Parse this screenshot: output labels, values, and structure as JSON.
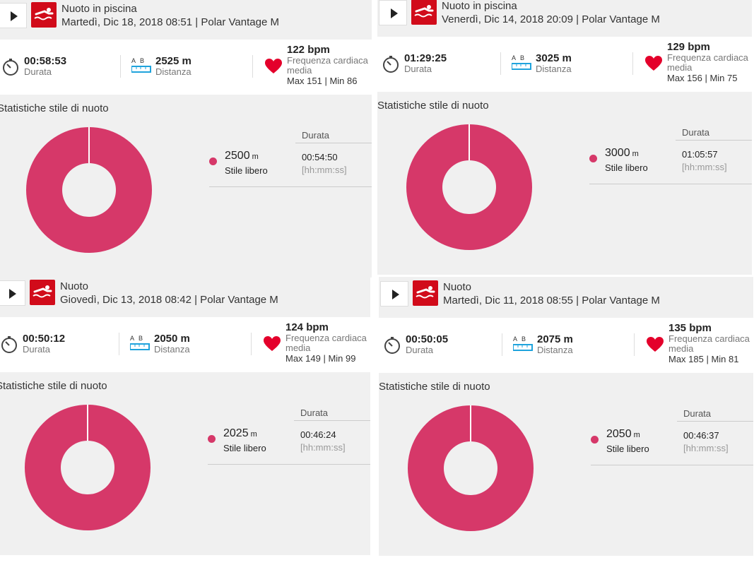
{
  "colors": {
    "accent": "#d63869",
    "sport_icon": "#d10b1a"
  },
  "sessions": [
    {
      "title": "Nuoto in piscina",
      "subtitle": "Martedì, Dic 18, 2018 08:51 | Polar Vantage M",
      "duration": "00:58:53",
      "duration_label": "Durata",
      "distance": "2525 m",
      "distance_label": "Distanza",
      "ab_a": "A",
      "ab_b": "B",
      "hr_value": "122 bpm",
      "hr_label1": "Frequenza cardiaca",
      "hr_label2": "media",
      "hr_minmax": "Max 151  |  Min 86",
      "stats_title": "Statistiche stile di nuoto",
      "style_distance": "2500",
      "unit": "m",
      "style_label": "Stile libero",
      "dur_header": "Durata",
      "style_duration": "00:54:50",
      "dur_unit": "[hh:mm:ss]",
      "style_share": 1.0
    },
    {
      "title": "Nuoto in piscina",
      "subtitle": "Venerdì, Dic 14, 2018 20:09 | Polar Vantage M",
      "duration": "01:29:25",
      "duration_label": "Durata",
      "distance": "3025 m",
      "distance_label": "Distanza",
      "ab_a": "A",
      "ab_b": "B",
      "hr_value": "129 bpm",
      "hr_label1": "Frequenza cardiaca",
      "hr_label2": "media",
      "hr_minmax": "Max 156  |  Min 75",
      "stats_title": "Statistiche stile di nuoto",
      "style_distance": "3000",
      "unit": "m",
      "style_label": "Stile libero",
      "dur_header": "Durata",
      "style_duration": "01:05:57",
      "dur_unit": "[hh:mm:ss]",
      "style_share": 1.0
    },
    {
      "title": "Nuoto",
      "subtitle": "Giovedì, Dic 13, 2018 08:42 | Polar Vantage M",
      "duration": "00:50:12",
      "duration_label": "Durata",
      "distance": "2050 m",
      "distance_label": "Distanza",
      "ab_a": "A",
      "ab_b": "B",
      "hr_value": "124 bpm",
      "hr_label1": "Frequenza cardiaca",
      "hr_label2": "media",
      "hr_minmax": "Max 149  |  Min 99",
      "stats_title": "Statistiche stile di nuoto",
      "style_distance": "2025",
      "unit": "m",
      "style_label": "Stile libero",
      "dur_header": "Durata",
      "style_duration": "00:46:24",
      "dur_unit": "[hh:mm:ss]",
      "style_share": 1.0
    },
    {
      "title": "Nuoto",
      "subtitle": "Martedì, Dic 11, 2018 08:55 | Polar Vantage M",
      "duration": "00:50:05",
      "duration_label": "Durata",
      "distance": "2075 m",
      "distance_label": "Distanza",
      "ab_a": "A",
      "ab_b": "B",
      "hr_value": "135 bpm",
      "hr_label1": "Frequenza cardiaca",
      "hr_label2": "media",
      "hr_minmax": "Max 185  |  Min 81",
      "stats_title": "Statistiche stile di nuoto",
      "style_distance": "2050",
      "unit": "m",
      "style_label": "Stile libero",
      "dur_header": "Durata",
      "style_duration": "00:46:37",
      "dur_unit": "[hh:mm:ss]",
      "style_share": 1.0
    }
  ]
}
